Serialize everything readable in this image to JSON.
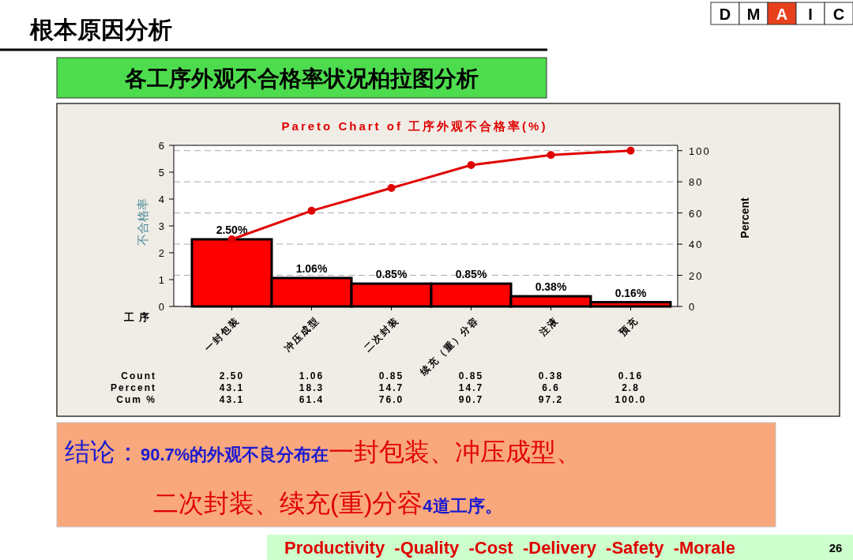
{
  "chart_data": {
    "type": "bar",
    "title": "Pareto Chart of 工序外观不合格率(%)",
    "xlabel": "工序",
    "ylabel": "不合格率",
    "y2label": "Percent",
    "categories": [
      "一封包装",
      "冲压成型",
      "二次封装",
      "续充（重）分容",
      "注液",
      "预充"
    ],
    "series": [
      {
        "color": "#ff0000",
        "values": [
          2.5,
          1.06,
          0.85,
          0.85,
          0.38,
          0.16
        ],
        "value_labels": [
          "2.50%",
          "1.06%",
          "0.85%",
          "0.85%",
          "0.38%",
          "0.16%"
        ]
      },
      {
        "type": "line",
        "axis": "y2",
        "color": "#e00000",
        "values": [
          43.1,
          61.4,
          76.0,
          90.7,
          97.2,
          100.0
        ]
      }
    ],
    "ylim": [
      0,
      6
    ],
    "yticks": [
      0,
      1,
      2,
      3,
      4,
      5,
      6
    ],
    "y2lim": [
      0,
      103.4
    ],
    "y2ticks": [
      0,
      20,
      40,
      60,
      80,
      100
    ],
    "grid": true,
    "marker": "circle",
    "line_style": "solid",
    "annotations": [
      "根本原因分析",
      "D",
      "M",
      "A",
      "I",
      "C",
      "各工序外观不合格率状况柏拉图分析",
      "Count",
      "Percent",
      "Cum %",
      "2.50",
      "1.06",
      "0.85",
      "0.85",
      "0.38",
      "0.16",
      "43.1",
      "18.3",
      "14.7",
      "14.7",
      "6.6",
      "2.8",
      "43.1",
      "61.4",
      "76.0",
      "90.7",
      "97.2",
      "100.0",
      "结论：",
      "90.7%的外观不良分布在",
      "一封包装、冲压成型、",
      "二次封装、续充(重)分容",
      "4道工序。",
      "Productivity  -Quality  -Cost  -Delivery  -Safety  -Morale",
      "26"
    ]
  }
}
